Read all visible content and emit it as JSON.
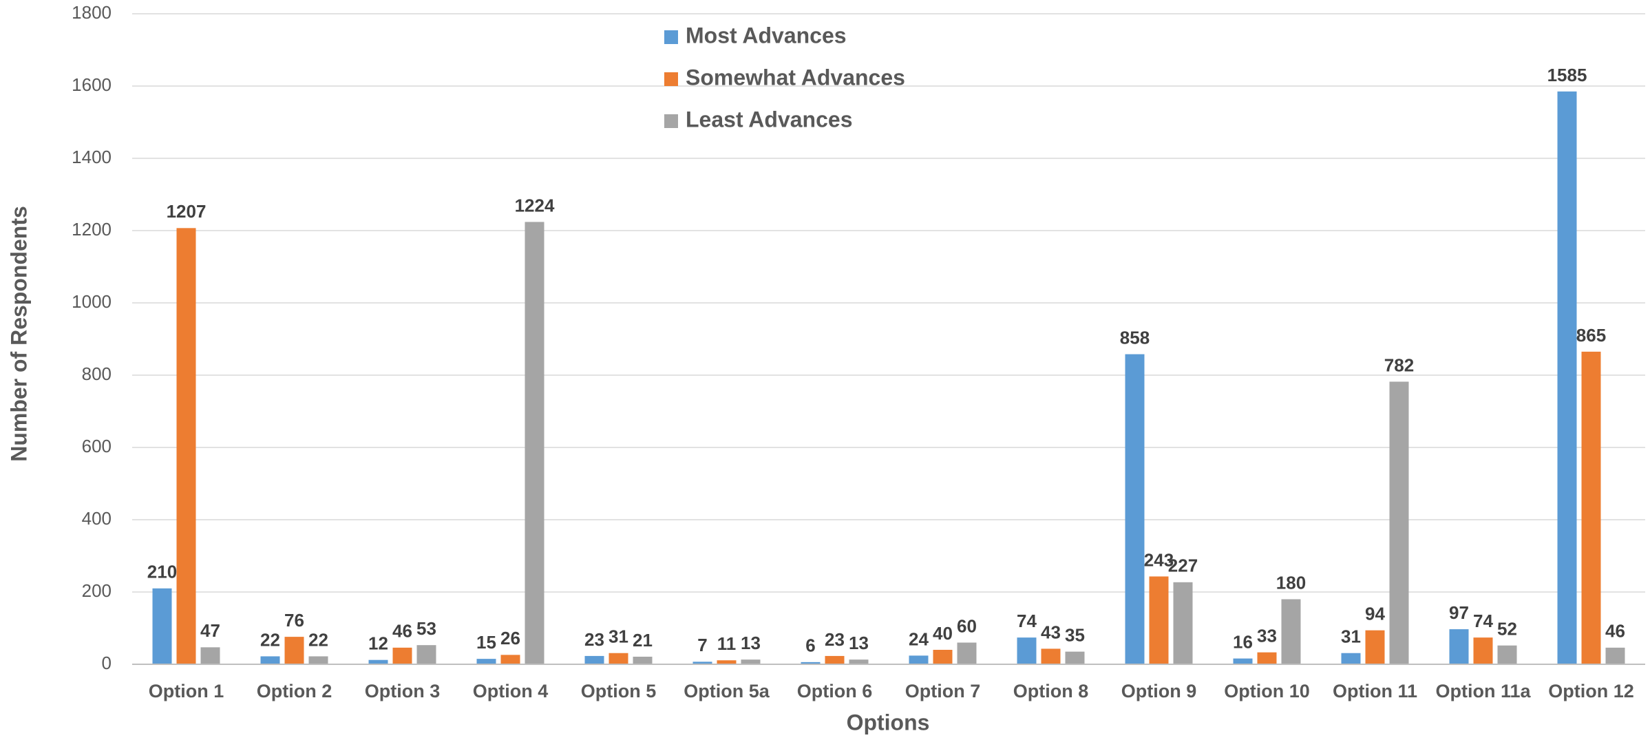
{
  "chart_data": {
    "type": "bar",
    "x_label": "Options",
    "y_label": "Number of Respondents",
    "categories": [
      "Option 1",
      "Option 2",
      "Option 3",
      "Option 4",
      "Option 5",
      "Option 5a",
      "Option 6",
      "Option 7",
      "Option 8",
      "Option 9",
      "Option 10",
      "Option 11",
      "Option 11a",
      "Option 12"
    ],
    "series": [
      {
        "name": "Most Advances",
        "color": "#5b9bd5",
        "values": [
          210,
          22,
          12,
          15,
          23,
          7,
          6,
          24,
          74,
          858,
          16,
          31,
          97,
          1585
        ]
      },
      {
        "name": "Somewhat Advances",
        "color": "#ed7d31",
        "values": [
          1207,
          76,
          46,
          26,
          31,
          11,
          23,
          40,
          43,
          243,
          33,
          94,
          74,
          865
        ]
      },
      {
        "name": "Least Advances",
        "color": "#a5a5a5",
        "values": [
          47,
          22,
          53,
          1224,
          21,
          13,
          13,
          60,
          35,
          227,
          180,
          782,
          52,
          46
        ]
      }
    ],
    "ylim": [
      0,
      1800
    ],
    "yticks": [
      0,
      200,
      400,
      600,
      800,
      1000,
      1200,
      1400,
      1600,
      1800
    ],
    "grid": true,
    "legend": "top"
  }
}
